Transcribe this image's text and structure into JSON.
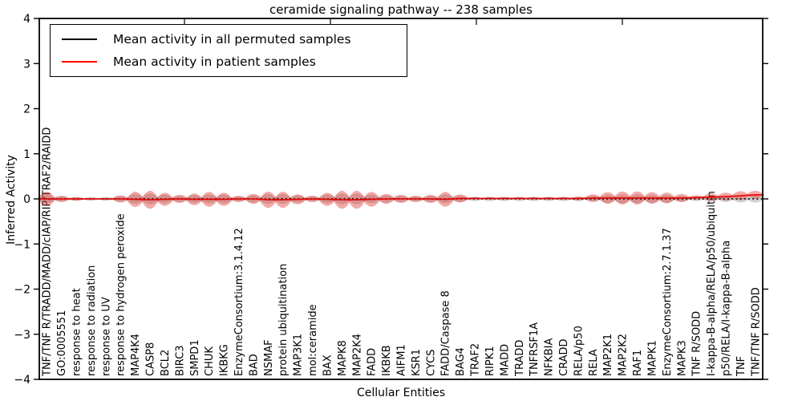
{
  "chart_data": {
    "type": "violin",
    "title": "ceramide signaling pathway -- 238 samples",
    "xlabel": "Cellular Entities",
    "ylabel": "Inferred Activity",
    "ylim": [
      -4,
      4
    ],
    "yticks": [
      -4,
      -3,
      -2,
      -1,
      0,
      1,
      2,
      3,
      4
    ],
    "grid": false,
    "legend_position": "upper left",
    "categories": [
      "TNF/TNF R/TRADD/MADD/cIAP/RIP/TRAF2/RAIDD",
      "GO:0005551",
      "response to heat",
      "response to radiation",
      "response to UV",
      "response to hydrogen peroxide",
      "MAP4K4",
      "CASP8",
      "BCL2",
      "BIRC3",
      "SMPD1",
      "CHUK",
      "IKBKG",
      "EnzymeConsortium:3.1.4.12",
      "BAD",
      "NSMAF",
      "protein ubiquitination",
      "MAP3K1",
      "mol:ceramide",
      "BAX",
      "MAPK8",
      "MAP2K4",
      "FADD",
      "IKBKB",
      "AIFM1",
      "KSR1",
      "CYCS",
      "FADD/Caspase 8",
      "BAG4",
      "TRAF2",
      "RIPK1",
      "MADD",
      "TRADD",
      "TNFRSF1A",
      "NFKBIA",
      "CRADD",
      "RELA/p50",
      "RELA",
      "MAP2K1",
      "MAP2K2",
      "RAF1",
      "MAPK1",
      "EnzymeConsortium:2.7.1.37",
      "MAPK3",
      "TNF R/SODD",
      "I-kappa-B-alpha/RELA/p50/ubiquitin",
      "p50/RELA/I-kappa-B-alpha",
      "TNF",
      "TNF/TNF R/SODD"
    ],
    "series": [
      {
        "name": "Mean activity in all permuted samples",
        "color": "#000000",
        "line_style": "dotted",
        "violin_fill": "rgba(120,120,120,0.35)",
        "mean": 0,
        "violin_halfwidths": [
          0.1,
          0.06,
          0.04,
          0.04,
          0.04,
          0.06,
          0.11,
          0.12,
          0.1,
          0.07,
          0.09,
          0.1,
          0.1,
          0.06,
          0.08,
          0.11,
          0.11,
          0.08,
          0.06,
          0.1,
          0.12,
          0.12,
          0.1,
          0.08,
          0.07,
          0.06,
          0.07,
          0.1,
          0.07,
          0.05,
          0.05,
          0.05,
          0.05,
          0.05,
          0.05,
          0.05,
          0.05,
          0.07,
          0.09,
          0.1,
          0.1,
          0.09,
          0.09,
          0.07,
          0.05,
          0.06,
          0.07,
          0.08,
          0.08
        ]
      },
      {
        "name": "Mean activity in patient samples",
        "color": "#e60000",
        "line_style": "solid",
        "violin_fill": "rgba(221,52,45,0.42)",
        "means": [
          0,
          0,
          0,
          0,
          0,
          0,
          -0.01,
          -0.02,
          -0.01,
          0,
          -0.01,
          -0.01,
          -0.01,
          0,
          0,
          -0.02,
          -0.02,
          -0.01,
          0,
          -0.01,
          -0.02,
          -0.02,
          -0.01,
          0,
          0,
          0,
          0,
          -0.01,
          0.01,
          0.01,
          0.01,
          0.01,
          0.01,
          0.01,
          0.01,
          0.01,
          0.01,
          0.02,
          0.02,
          0.02,
          0.02,
          0.02,
          0.02,
          0.02,
          0.03,
          0.04,
          0.05,
          0.07,
          0.09
        ],
        "violin_halfwidths": [
          0.16,
          0.07,
          0.04,
          0.025,
          0.025,
          0.08,
          0.17,
          0.2,
          0.145,
          0.09,
          0.13,
          0.165,
          0.145,
          0.07,
          0.11,
          0.18,
          0.18,
          0.11,
          0.07,
          0.145,
          0.2,
          0.2,
          0.165,
          0.11,
          0.09,
          0.07,
          0.09,
          0.165,
          0.09,
          0.025,
          0.025,
          0.025,
          0.025,
          0.025,
          0.025,
          0.025,
          0.04,
          0.08,
          0.13,
          0.145,
          0.145,
          0.13,
          0.12,
          0.09,
          0.05,
          0.08,
          0.09,
          0.1,
          0.09
        ]
      }
    ]
  }
}
